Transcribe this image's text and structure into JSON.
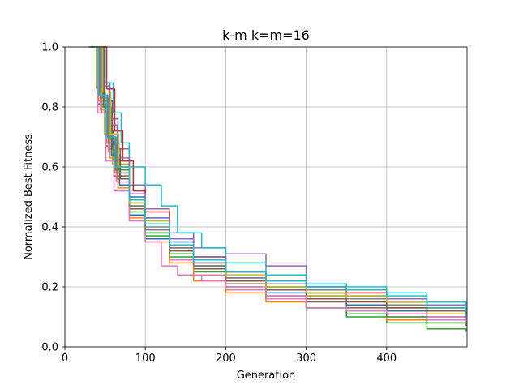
{
  "chart_data": {
    "type": "line",
    "title": "k-m k=m=16",
    "xlabel": "Generation",
    "ylabel": "Normalized Best Fitness",
    "xlim": [
      0,
      500
    ],
    "ylim": [
      0,
      1.0
    ],
    "xticks": [
      0,
      100,
      200,
      300,
      400
    ],
    "xtick_labels": [
      "0",
      "100",
      "200",
      "300",
      "400"
    ],
    "yticks": [
      0.0,
      0.2,
      0.4,
      0.6,
      0.8,
      1.0
    ],
    "ytick_labels": [
      "0.0",
      "0.2",
      "0.4",
      "0.6",
      "0.8",
      "1.0"
    ],
    "grid": true,
    "series": [
      {
        "color": "#1f77b4",
        "x": [
          30,
          40,
          50,
          60,
          80,
          100,
          130,
          160,
          200,
          250,
          300,
          350,
          400,
          450,
          499
        ],
        "y": [
          1.0,
          0.85,
          0.72,
          0.62,
          0.5,
          0.43,
          0.35,
          0.3,
          0.24,
          0.2,
          0.18,
          0.16,
          0.14,
          0.12,
          0.11
        ]
      },
      {
        "color": "#ff7f0e",
        "x": [
          32,
          42,
          52,
          62,
          80,
          100,
          130,
          160,
          200,
          250,
          300,
          350,
          400,
          450,
          499
        ],
        "y": [
          1.0,
          0.82,
          0.68,
          0.58,
          0.47,
          0.39,
          0.32,
          0.27,
          0.22,
          0.19,
          0.17,
          0.15,
          0.13,
          0.12,
          0.12
        ]
      },
      {
        "color": "#2ca02c",
        "x": [
          35,
          45,
          55,
          65,
          80,
          100,
          130,
          160,
          200,
          250,
          300,
          350,
          400,
          450,
          499
        ],
        "y": [
          1.0,
          0.8,
          0.66,
          0.56,
          0.45,
          0.37,
          0.3,
          0.25,
          0.2,
          0.16,
          0.13,
          0.1,
          0.08,
          0.06,
          0.05
        ]
      },
      {
        "color": "#d62728",
        "x": [
          33,
          43,
          53,
          63,
          80,
          100,
          130,
          160,
          200,
          250,
          300,
          350,
          400,
          450,
          499
        ],
        "y": [
          1.0,
          0.84,
          0.7,
          0.6,
          0.49,
          0.41,
          0.33,
          0.28,
          0.23,
          0.19,
          0.17,
          0.16,
          0.15,
          0.15,
          0.15
        ]
      },
      {
        "color": "#9467bd",
        "x": [
          36,
          46,
          56,
          66,
          80,
          100,
          130,
          160,
          200,
          250,
          300,
          350,
          400,
          450,
          499
        ],
        "y": [
          1.0,
          0.88,
          0.76,
          0.66,
          0.54,
          0.46,
          0.38,
          0.33,
          0.31,
          0.27,
          0.21,
          0.18,
          0.16,
          0.14,
          0.13
        ]
      },
      {
        "color": "#8c564b",
        "x": [
          31,
          41,
          51,
          61,
          80,
          100,
          130,
          160,
          200,
          250,
          300,
          350,
          400,
          450,
          499
        ],
        "y": [
          1.0,
          0.81,
          0.67,
          0.57,
          0.46,
          0.38,
          0.31,
          0.26,
          0.21,
          0.17,
          0.15,
          0.13,
          0.12,
          0.11,
          0.1
        ]
      },
      {
        "color": "#e377c2",
        "x": [
          34,
          44,
          54,
          64,
          80,
          100,
          130,
          160,
          200,
          250,
          300,
          350,
          400,
          450,
          499
        ],
        "y": [
          1.0,
          0.79,
          0.65,
          0.55,
          0.44,
          0.36,
          0.29,
          0.24,
          0.19,
          0.16,
          0.13,
          0.12,
          0.1,
          0.09,
          0.08
        ]
      },
      {
        "color": "#7f7f7f",
        "x": [
          37,
          47,
          57,
          67,
          80,
          100,
          130,
          160,
          200,
          250,
          300,
          350,
          400,
          450,
          499
        ],
        "y": [
          1.0,
          0.83,
          0.69,
          0.59,
          0.48,
          0.4,
          0.33,
          0.28,
          0.23,
          0.2,
          0.18,
          0.16,
          0.14,
          0.13,
          0.12
        ]
      },
      {
        "color": "#bcbd22",
        "x": [
          29,
          39,
          49,
          59,
          80,
          100,
          130,
          160,
          200,
          250,
          300,
          350,
          400,
          450,
          499
        ],
        "y": [
          1.0,
          0.86,
          0.71,
          0.61,
          0.49,
          0.42,
          0.34,
          0.29,
          0.24,
          0.2,
          0.17,
          0.15,
          0.13,
          0.11,
          0.09
        ]
      },
      {
        "color": "#17becf",
        "x": [
          40,
          50,
          60,
          70,
          80,
          100,
          120,
          140,
          170,
          200,
          250,
          300,
          350,
          400,
          450,
          499
        ],
        "y": [
          1.0,
          0.88,
          0.78,
          0.68,
          0.6,
          0.54,
          0.47,
          0.38,
          0.33,
          0.28,
          0.24,
          0.21,
          0.2,
          0.18,
          0.15,
          0.13
        ]
      },
      {
        "color": "#1f77b4",
        "x": [
          38,
          48,
          58,
          68,
          80,
          100,
          130,
          160,
          200,
          250,
          300,
          350,
          400,
          450,
          499
        ],
        "y": [
          1.0,
          0.8,
          0.64,
          0.54,
          0.44,
          0.36,
          0.31,
          0.27,
          0.22,
          0.18,
          0.16,
          0.14,
          0.12,
          0.1,
          0.1
        ]
      },
      {
        "color": "#ff7f0e",
        "x": [
          36,
          46,
          56,
          66,
          80,
          100,
          130,
          160,
          200,
          250,
          300,
          350,
          400,
          450,
          499
        ],
        "y": [
          1.0,
          0.78,
          0.63,
          0.53,
          0.43,
          0.35,
          0.28,
          0.22,
          0.18,
          0.15,
          0.13,
          0.11,
          0.09,
          0.08,
          0.07
        ]
      },
      {
        "color": "#2ca02c",
        "x": [
          33,
          43,
          53,
          63,
          80,
          100,
          130,
          160,
          200,
          250,
          300,
          350,
          400,
          450,
          499
        ],
        "y": [
          1.0,
          0.84,
          0.7,
          0.59,
          0.47,
          0.38,
          0.31,
          0.27,
          0.22,
          0.17,
          0.13,
          0.11,
          0.1,
          0.08,
          0.07
        ]
      },
      {
        "color": "#d62728",
        "x": [
          42,
          52,
          62,
          72,
          85,
          100,
          130,
          160,
          200,
          250,
          300,
          350,
          400,
          450,
          499
        ],
        "y": [
          1.0,
          0.86,
          0.72,
          0.62,
          0.52,
          0.45,
          0.36,
          0.3,
          0.25,
          0.22,
          0.2,
          0.18,
          0.15,
          0.12,
          0.11
        ]
      },
      {
        "color": "#9467bd",
        "x": [
          35,
          45,
          55,
          65,
          80,
          100,
          130,
          160,
          200,
          250,
          300,
          350,
          400,
          450,
          499
        ],
        "y": [
          1.0,
          0.87,
          0.74,
          0.63,
          0.51,
          0.43,
          0.36,
          0.3,
          0.25,
          0.21,
          0.2,
          0.17,
          0.15,
          0.13,
          0.12
        ]
      },
      {
        "color": "#8c564b",
        "x": [
          39,
          49,
          59,
          69,
          80,
          100,
          130,
          160,
          200,
          250,
          300,
          350,
          400,
          450,
          499
        ],
        "y": [
          1.0,
          0.82,
          0.66,
          0.56,
          0.46,
          0.39,
          0.32,
          0.27,
          0.22,
          0.19,
          0.16,
          0.15,
          0.13,
          0.12,
          0.11
        ]
      },
      {
        "color": "#e377c2",
        "x": [
          31,
          41,
          51,
          61,
          80,
          100,
          120,
          140,
          170,
          200,
          250,
          300,
          350,
          400,
          450,
          499
        ],
        "y": [
          1.0,
          0.78,
          0.62,
          0.52,
          0.42,
          0.35,
          0.27,
          0.24,
          0.22,
          0.2,
          0.17,
          0.13,
          0.12,
          0.11,
          0.1,
          0.09
        ]
      },
      {
        "color": "#7f7f7f",
        "x": [
          34,
          44,
          54,
          64,
          80,
          100,
          130,
          160,
          200,
          250,
          300,
          350,
          400,
          450,
          499
        ],
        "y": [
          1.0,
          0.83,
          0.68,
          0.58,
          0.47,
          0.39,
          0.33,
          0.27,
          0.23,
          0.21,
          0.19,
          0.17,
          0.15,
          0.13,
          0.12
        ]
      },
      {
        "color": "#bcbd22",
        "x": [
          37,
          47,
          57,
          67,
          80,
          100,
          130,
          160,
          200,
          250,
          300,
          350,
          400,
          450,
          499
        ],
        "y": [
          1.0,
          0.85,
          0.71,
          0.6,
          0.48,
          0.41,
          0.34,
          0.29,
          0.24,
          0.2,
          0.18,
          0.17,
          0.15,
          0.13,
          0.12
        ]
      },
      {
        "color": "#17becf",
        "x": [
          32,
          42,
          52,
          62,
          80,
          100,
          130,
          160,
          200,
          250,
          300,
          350,
          400,
          450,
          499
        ],
        "y": [
          1.0,
          0.84,
          0.7,
          0.6,
          0.49,
          0.41,
          0.34,
          0.29,
          0.25,
          0.22,
          0.2,
          0.19,
          0.17,
          0.13,
          0.1
        ]
      }
    ]
  }
}
